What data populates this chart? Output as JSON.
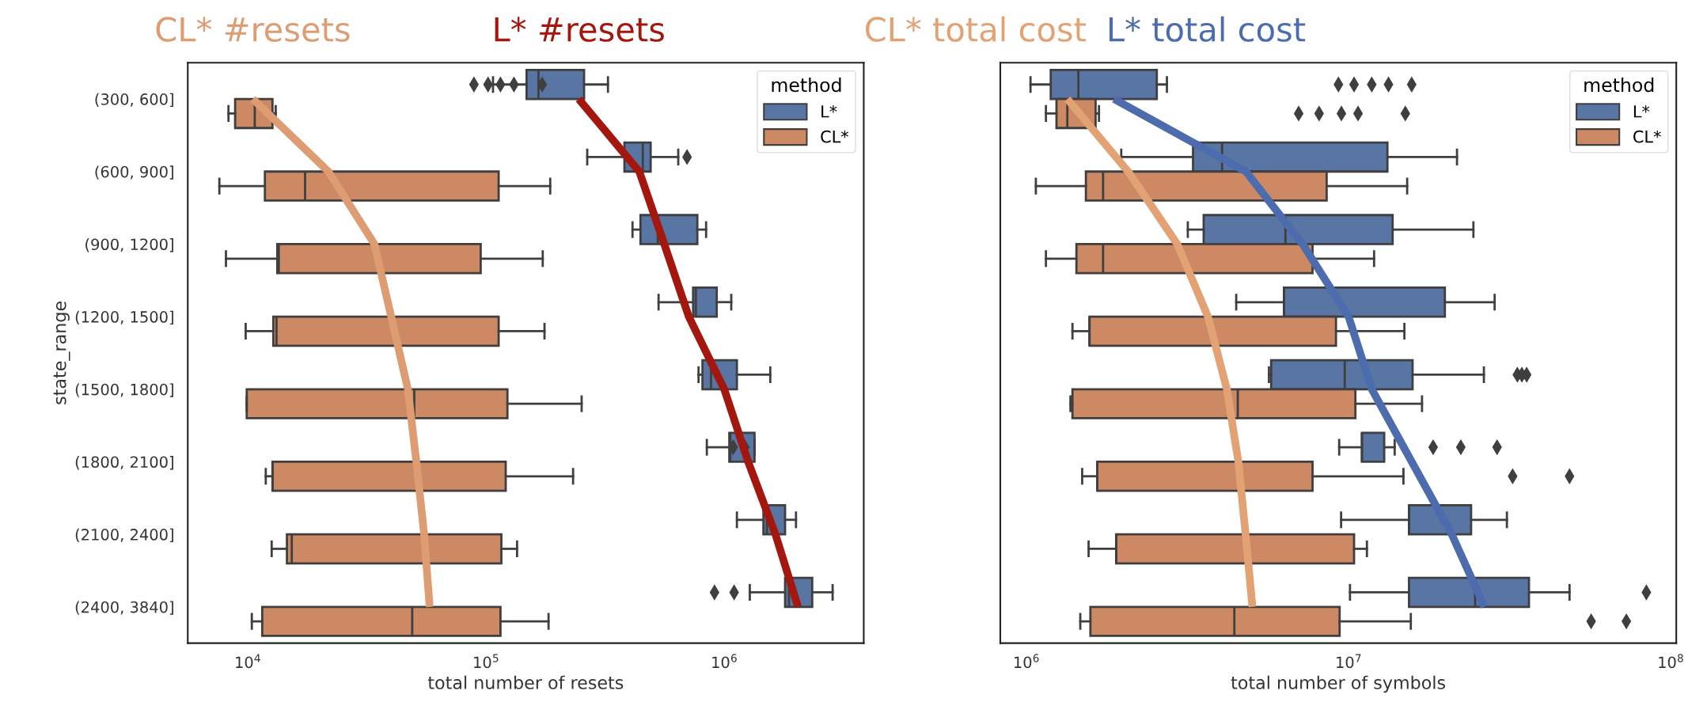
{
  "chart_data": [
    {
      "type": "box",
      "orientation": "horizontal",
      "categories": [
        "(300, 600]",
        "(600, 900]",
        "(900, 1200]",
        "(1200, 1500]",
        "(1500, 1800]",
        "(1800, 2100]",
        "(2100, 2400]",
        "(2400, 3840]"
      ],
      "xlabel": "total number of resets",
      "ylabel": "state_range",
      "log": "x",
      "xlim": [
        5600,
        3850000
      ],
      "xticks": [
        {
          "value": 10000,
          "label": "10$^{4}$"
        },
        {
          "value": 100000,
          "label": "10$^{5}$"
        },
        {
          "value": 1000000,
          "label": "10$^{6}$"
        }
      ],
      "legend": "top right",
      "legend_title": "method",
      "grid": false,
      "series": [
        {
          "name": "L*",
          "color": "#5875a4",
          "boxes": [
            {
              "low": 107000,
              "q1": 148000,
              "median": 166000,
              "q3": 258000,
              "high": 325000,
              "outliers": [
                89000,
                102000,
                115000,
                131000,
                172000
              ]
            },
            {
              "low": 266000,
              "q1": 381000,
              "median": 455000,
              "q3": 491000,
              "high": 641000,
              "outliers": [
                698000
              ]
            },
            {
              "low": 412000,
              "q1": 445000,
              "median": 526000,
              "q3": 771000,
              "high": 839000
            },
            {
              "low": 530000,
              "q1": 740000,
              "median": 760000,
              "q3": 930000,
              "high": 1070000
            },
            {
              "low": 780000,
              "q1": 810000,
              "median": 880000,
              "q3": 1130000,
              "high": 1560000
            },
            {
              "low": 845000,
              "q1": 1050000,
              "median": 1060000,
              "q3": 1340000,
              "high": 1340000,
              "outliers": [
                1090000,
                1220000
              ]
            },
            {
              "low": 1130000,
              "q1": 1460000,
              "median": 1510000,
              "q3": 1800000,
              "high": 2000000
            },
            {
              "low": 1280000,
              "q1": 1800000,
              "median": 1870000,
              "q3": 2340000,
              "high": 2850000,
              "outliers": [
                910000,
                1100000
              ]
            }
          ]
        },
        {
          "name": "CL*",
          "color": "#cc8963",
          "boxes": [
            {
              "low": 8300,
              "q1": 8850,
              "median": 10700,
              "q3": 12700,
              "high": 13100
            },
            {
              "low": 7600,
              "q1": 11800,
              "median": 17400,
              "q3": 113000,
              "high": 186000
            },
            {
              "low": 8100,
              "q1": 13300,
              "median": 13500,
              "q3": 95000,
              "high": 173000
            },
            {
              "low": 9800,
              "q1": 12800,
              "median": 13200,
              "q3": 113000,
              "high": 176000
            },
            {
              "low": 9900,
              "q1": 9900,
              "median": 50000,
              "q3": 123000,
              "high": 252000
            },
            {
              "low": 11900,
              "q1": 12700,
              "median": 12700,
              "q3": 121000,
              "high": 232000
            },
            {
              "low": 12600,
              "q1": 14600,
              "median": 15300,
              "q3": 116000,
              "high": 135000
            },
            {
              "low": 10400,
              "q1": 11500,
              "median": 49000,
              "q3": 115000,
              "high": 183000
            }
          ]
        },
        {
          "name": "CL* #resets",
          "type": "line",
          "color": "#dd9c72",
          "values": [
            10500,
            21800,
            34000,
            40000,
            47000,
            51000,
            55000,
            58000
          ]
        },
        {
          "name": "L* #resets",
          "type": "line",
          "color": "#a3170f",
          "values": [
            245000,
            440000,
            560000,
            710000,
            1000000,
            1260000,
            1640000,
            2040000
          ]
        }
      ]
    },
    {
      "type": "box",
      "orientation": "horizontal",
      "categories": [
        null,
        null,
        null,
        null,
        null,
        null,
        null,
        null
      ],
      "xlabel": "total number of symbols",
      "log": "x",
      "xlim": [
        830000,
        104000000
      ],
      "xticks": [
        {
          "value": 1000000,
          "label": "10$^{6}$"
        },
        {
          "value": 10000000,
          "label": "10$^{7}$"
        },
        {
          "value": 100000000,
          "label": "10$^{8}$"
        }
      ],
      "legend": "top right",
      "legend_title": "method",
      "grid": false,
      "series": [
        {
          "name": "L*",
          "color": "#5875a4",
          "boxes": [
            {
              "low": 1030000,
              "q1": 1190000,
              "median": 1450000,
              "q3": 2540000,
              "high": 2730000,
              "outliers": [
                9300000,
                10400000,
                11800000,
                13300000,
                15700000
              ]
            },
            {
              "low": 1970000,
              "q1": 3290000,
              "median": 4050000,
              "q3": 13200000,
              "high": 21700000
            },
            {
              "low": 3170000,
              "q1": 3550000,
              "median": 6370000,
              "q3": 13700000,
              "high": 24400000
            },
            {
              "low": 4480000,
              "q1": 6300000,
              "median": 6300000,
              "q3": 19900000,
              "high": 28400000
            },
            {
              "low": 5660000,
              "q1": 5750000,
              "median": 9730000,
              "q3": 15800000,
              "high": 26300000,
              "outliers": [
                33400000,
                34500000,
                35700000
              ]
            },
            {
              "low": 9350000,
              "q1": 11000000,
              "median": 11000000,
              "q3": 12900000,
              "high": 13900000,
              "outliers": [
                18300000,
                22300000,
                28900000
              ]
            },
            {
              "low": 9480000,
              "q1": 15400000,
              "median": 15400000,
              "q3": 24000000,
              "high": 31000000
            },
            {
              "low": 10100000,
              "q1": 15400000,
              "median": 24700000,
              "q3": 36300000,
              "high": 48500000,
              "outliers": [
                84000000
              ]
            }
          ]
        },
        {
          "name": "CL*",
          "color": "#cc8963",
          "boxes": [
            {
              "low": 1150000,
              "q1": 1240000,
              "median": 1340000,
              "q3": 1640000,
              "high": 1680000,
              "outliers": [
                7000000,
                8100000,
                9500000,
                10700000,
                15000000
              ]
            },
            {
              "low": 1070000,
              "q1": 1530000,
              "median": 1730000,
              "q3": 8550000,
              "high": 15200000
            },
            {
              "low": 1150000,
              "q1": 1430000,
              "median": 1730000,
              "q3": 7730000,
              "high": 12000000
            },
            {
              "low": 1390000,
              "q1": 1570000,
              "median": 1570000,
              "q3": 9140000,
              "high": 14900000
            },
            {
              "low": 1370000,
              "q1": 1390000,
              "median": 4530000,
              "q3": 10500000,
              "high": 16900000
            },
            {
              "low": 1490000,
              "q1": 1660000,
              "median": 1660000,
              "q3": 7730000,
              "high": 14800000,
              "outliers": [
                32300000,
                48500000
              ]
            },
            {
              "low": 1560000,
              "q1": 1900000,
              "median": 1900000,
              "q3": 10400000,
              "high": 11400000
            },
            {
              "low": 1470000,
              "q1": 1580000,
              "median": 4420000,
              "q3": 9380000,
              "high": 15600000,
              "outliers": [
                56600000,
                72800000
              ]
            }
          ]
        },
        {
          "name": "CL* total cost",
          "type": "line",
          "color": "#e2a274",
          "values": [
            1340000,
            2070000,
            2940000,
            3660000,
            4190000,
            4550000,
            4790000,
            5030000
          ]
        },
        {
          "name": "L* total cost",
          "type": "line",
          "color": "#4d6cad",
          "values": [
            1870000,
            4800000,
            7200000,
            10000000,
            11800000,
            15700000,
            20900000,
            26400000
          ]
        }
      ]
    }
  ]
}
